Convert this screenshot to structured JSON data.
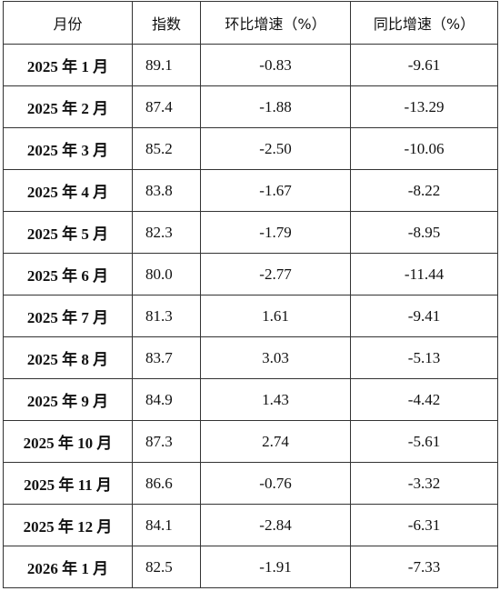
{
  "table": {
    "header": [
      "月份",
      "指数",
      "环比增速（%）",
      "同比增速（%）"
    ],
    "rows": [
      [
        "2025 年 1 月",
        "89.1",
        "-0.83",
        "-9.61"
      ],
      [
        "2025 年 2 月",
        "87.4",
        "-1.88",
        "-13.29"
      ],
      [
        "2025 年 3 月",
        "85.2",
        "-2.50",
        "-10.06"
      ],
      [
        "2025 年 4 月",
        "83.8",
        "-1.67",
        "-8.22"
      ],
      [
        "2025 年 5 月",
        "82.3",
        "-1.79",
        "-8.95"
      ],
      [
        "2025 年 6 月",
        "80.0",
        "-2.77",
        "-11.44"
      ],
      [
        "2025 年 7 月",
        "81.3",
        "1.61",
        "-9.41"
      ],
      [
        "2025 年 8 月",
        "83.7",
        "3.03",
        "-5.13"
      ],
      [
        "2025 年 9 月",
        "84.9",
        "1.43",
        "-4.42"
      ],
      [
        "2025 年 10 月",
        "87.3",
        "2.74",
        "-5.61"
      ],
      [
        "2025 年 11 月",
        "86.6",
        "-0.76",
        "-3.32"
      ],
      [
        "2025 年 12 月",
        "84.1",
        "-2.84",
        "-6.31"
      ],
      [
        "2026 年 1 月",
        "82.5",
        "-1.91",
        "-7.33"
      ]
    ]
  }
}
